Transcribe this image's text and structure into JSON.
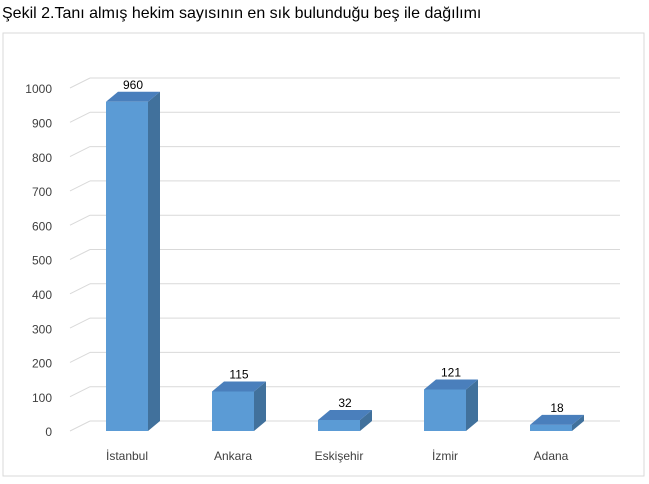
{
  "chart_data": {
    "type": "bar3d",
    "title": "Şekil 2.Tanı almış hekim sayısının en sık bulunduğu beş ile dağılımı",
    "categories": [
      "İstanbul",
      "Ankara",
      "Eskişehir",
      "İzmir",
      "Adana"
    ],
    "values": [
      960,
      115,
      32,
      121,
      18
    ],
    "color": "#5b9bd5",
    "ylim": [
      0,
      1000
    ],
    "yticks": [
      0,
      100,
      200,
      300,
      400,
      500,
      600,
      700,
      800,
      900,
      1000
    ],
    "grid": true
  }
}
